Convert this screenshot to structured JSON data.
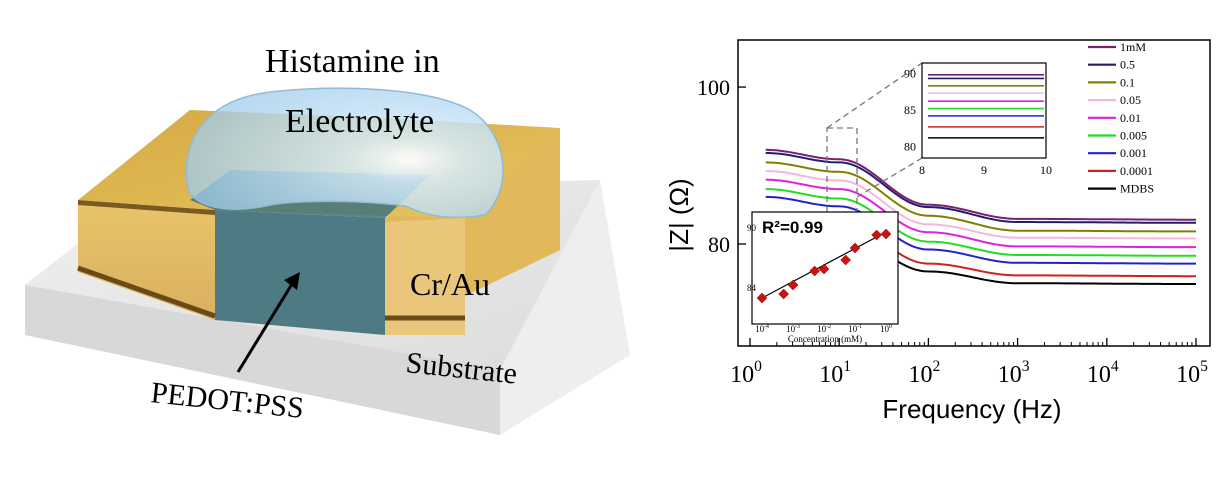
{
  "device": {
    "label_droplet_line1": "Histamine in",
    "label_droplet_line2": "Electrolyte",
    "label_electrode": "Cr/Au",
    "label_substrate": "Substrate",
    "label_channel": "PEDOT:PSS",
    "colors": {
      "gold": "#e9c46a",
      "channel": "#3d6f78",
      "droplet": "#a9d3ef",
      "substrate": "#e6e6e6"
    }
  },
  "chart_data": [
    {
      "type": "line",
      "xlabel": "Frequency (Hz)",
      "ylabel": "|Z| (Ω)",
      "xscale": "log",
      "xlim": [
        0.8,
        100000
      ],
      "ylim": [
        67,
        106
      ],
      "xticks": [
        "10^0",
        "10^1",
        "10^2",
        "10^3",
        "10^4",
        "10^5"
      ],
      "yticks": [
        80,
        100
      ],
      "grid": false,
      "legend_position": "top-right",
      "x": [
        1.5,
        10,
        100,
        1000,
        100000
      ],
      "series": [
        {
          "name": "1mM",
          "color": "#7b1f6e",
          "values": [
            92.0,
            90.8,
            85.0,
            83.2,
            83.1
          ]
        },
        {
          "name": "0.5",
          "color": "#1f1f6e",
          "values": [
            91.6,
            90.4,
            84.7,
            82.8,
            82.7
          ]
        },
        {
          "name": "0.1",
          "color": "#808000",
          "values": [
            90.4,
            89.2,
            83.6,
            81.7,
            81.6
          ]
        },
        {
          "name": "0.05",
          "color": "#f4b8e0",
          "values": [
            89.3,
            88.1,
            82.5,
            80.8,
            80.7
          ]
        },
        {
          "name": "0.01",
          "color": "#e020e0",
          "values": [
            88.2,
            87.0,
            81.5,
            79.7,
            79.6
          ]
        },
        {
          "name": "0.005",
          "color": "#22dd22",
          "values": [
            87.0,
            85.8,
            80.3,
            78.6,
            78.5
          ]
        },
        {
          "name": "0.001",
          "color": "#2222cc",
          "values": [
            86.0,
            84.8,
            79.3,
            77.6,
            77.5
          ]
        },
        {
          "name": "0.0001",
          "color": "#cc2222",
          "values": [
            84.0,
            82.8,
            77.5,
            76.0,
            75.9
          ]
        },
        {
          "name": "MDBS",
          "color": "#000000",
          "values": [
            82.5,
            81.3,
            76.5,
            75.0,
            74.9
          ]
        }
      ]
    },
    {
      "type": "line",
      "xscale": "linear",
      "xlim": [
        8,
        10
      ],
      "ylim": [
        79,
        91
      ],
      "xticks": [
        8,
        9,
        10
      ],
      "yticks": [
        80,
        85,
        90
      ],
      "series_values": [
        89.8,
        89.3,
        88.3,
        87.3,
        86.2,
        85.2,
        84.2,
        82.7,
        81.2
      ]
    },
    {
      "type": "scatter",
      "annotation": "R²=0.99",
      "xlabel": "Concentration (mM)",
      "xscale": "log",
      "xlim": [
        4e-05,
        2
      ],
      "ylim": [
        81,
        91
      ],
      "xticks": [
        "10^-4",
        "10^-3",
        "10^-2",
        "10^-1",
        "10^0"
      ],
      "yticks": [
        84,
        90
      ],
      "x": [
        0.0001,
        0.0005,
        0.001,
        0.005,
        0.01,
        0.05,
        0.1,
        0.5,
        1.0
      ],
      "values": [
        83.0,
        83.4,
        84.3,
        85.7,
        85.9,
        86.8,
        88.0,
        89.3,
        89.4
      ],
      "fit": {
        "x": [
          0.0001,
          1.0
        ],
        "y": [
          83.0,
          89.6
        ]
      },
      "marker_color": "#cc1111"
    }
  ]
}
